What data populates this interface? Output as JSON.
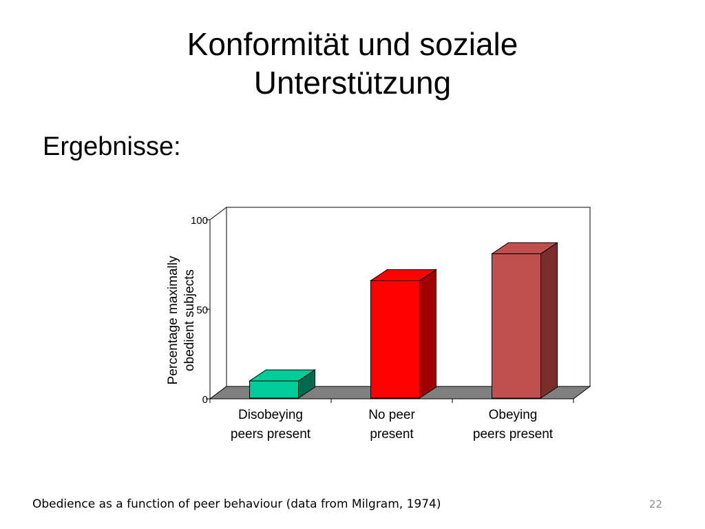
{
  "slide": {
    "title_line1": "Konformität und soziale",
    "title_line2": "Unterstützung",
    "subheading": "Ergebnisse:",
    "caption": "Obedience as a function of peer behaviour (data from Milgram, 1974)",
    "page_number": "22"
  },
  "chart_data": {
    "type": "bar",
    "title": "",
    "categories": [
      [
        "Disobeying",
        "peers present"
      ],
      [
        "No peer",
        "present"
      ],
      [
        "Obeying",
        "peers present"
      ]
    ],
    "values": [
      10,
      66,
      81
    ],
    "ylabel": [
      "Percentage maximally",
      "obedient subjects"
    ],
    "xlabel": "",
    "ylim": [
      0,
      100
    ],
    "yticks": [
      0,
      50,
      100
    ],
    "bar_colors": [
      "#00cc99",
      "#ff0000",
      "#c0504d"
    ],
    "bar_side_colors": [
      "#006a4d",
      "#a00000",
      "#7a2e2c"
    ],
    "floor_color": "#808080",
    "grid": false,
    "three_d": true
  }
}
